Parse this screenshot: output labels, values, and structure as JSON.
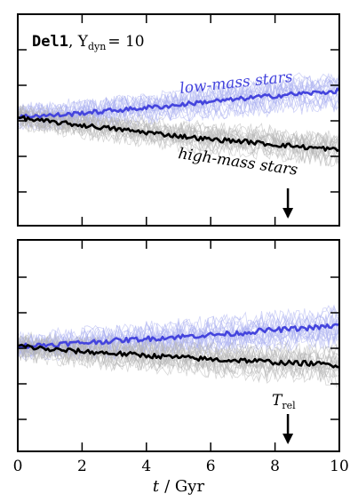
{
  "chart_data": [
    {
      "type": "line",
      "panel": "top",
      "title_model": "Del1",
      "title_param": "Υ",
      "title_param_sub": "dyn",
      "title_eq": "= 10",
      "xlim": [
        0,
        10
      ],
      "x": [
        0,
        0.5,
        1,
        1.5,
        2,
        2.5,
        3,
        3.5,
        4,
        4.5,
        5,
        5.5,
        6,
        6.5,
        7,
        7.5,
        8,
        8.5,
        9,
        9.5,
        10
      ],
      "series": [
        {
          "name": "low-mass stars",
          "color": "#4444dd",
          "band_color": "#a9aef0",
          "values": [
            0.0,
            0.02,
            0.02,
            0.03,
            0.05,
            0.06,
            0.08,
            0.09,
            0.11,
            0.12,
            0.14,
            0.16,
            0.18,
            0.19,
            0.21,
            0.23,
            0.24,
            0.26,
            0.27,
            0.28,
            0.3
          ]
        },
        {
          "name": "high-mass stars",
          "color": "#000000",
          "band_color": "#b5b5b5",
          "values": [
            0.0,
            -0.03,
            -0.05,
            -0.07,
            -0.09,
            -0.11,
            -0.13,
            -0.15,
            -0.17,
            -0.19,
            -0.21,
            -0.23,
            -0.25,
            -0.26,
            -0.27,
            -0.29,
            -0.31,
            -0.32,
            -0.34,
            -0.35,
            -0.37
          ]
        }
      ],
      "annotations": [
        {
          "text": "low-mass stars",
          "series": "low-mass stars"
        },
        {
          "text": "high-mass stars",
          "series": "high-mass stars"
        }
      ],
      "arrow_x": 8.4
    },
    {
      "type": "line",
      "panel": "bottom",
      "xlim": [
        0,
        10
      ],
      "xlabel_var": "t",
      "xlabel_unit": "/ Gyr",
      "xticks": [
        "0",
        "2",
        "4",
        "6",
        "8",
        "10"
      ],
      "x": [
        0,
        0.5,
        1,
        1.5,
        2,
        2.5,
        3,
        3.5,
        4,
        4.5,
        5,
        5.5,
        6,
        6.5,
        7,
        7.5,
        8,
        8.5,
        9,
        9.5,
        10
      ],
      "series": [
        {
          "name": "low-mass stars",
          "color": "#4444dd",
          "band_color": "#a9aef0",
          "values": [
            0.0,
            0.0,
            0.01,
            0.02,
            0.03,
            0.04,
            0.05,
            0.06,
            0.07,
            0.08,
            0.09,
            0.1,
            0.11,
            0.12,
            0.13,
            0.15,
            0.16,
            0.17,
            0.18,
            0.19,
            0.21
          ]
        },
        {
          "name": "high-mass stars",
          "color": "#000000",
          "band_color": "#b5b5b5",
          "values": [
            0.0,
            -0.02,
            -0.04,
            -0.05,
            -0.06,
            -0.07,
            -0.08,
            -0.09,
            -0.1,
            -0.11,
            -0.12,
            -0.13,
            -0.14,
            -0.15,
            -0.15,
            -0.16,
            -0.17,
            -0.18,
            -0.18,
            -0.19,
            -0.2
          ]
        }
      ],
      "arrow_label_base": "T",
      "arrow_label_sub": "rel",
      "arrow_x": 8.4
    }
  ]
}
